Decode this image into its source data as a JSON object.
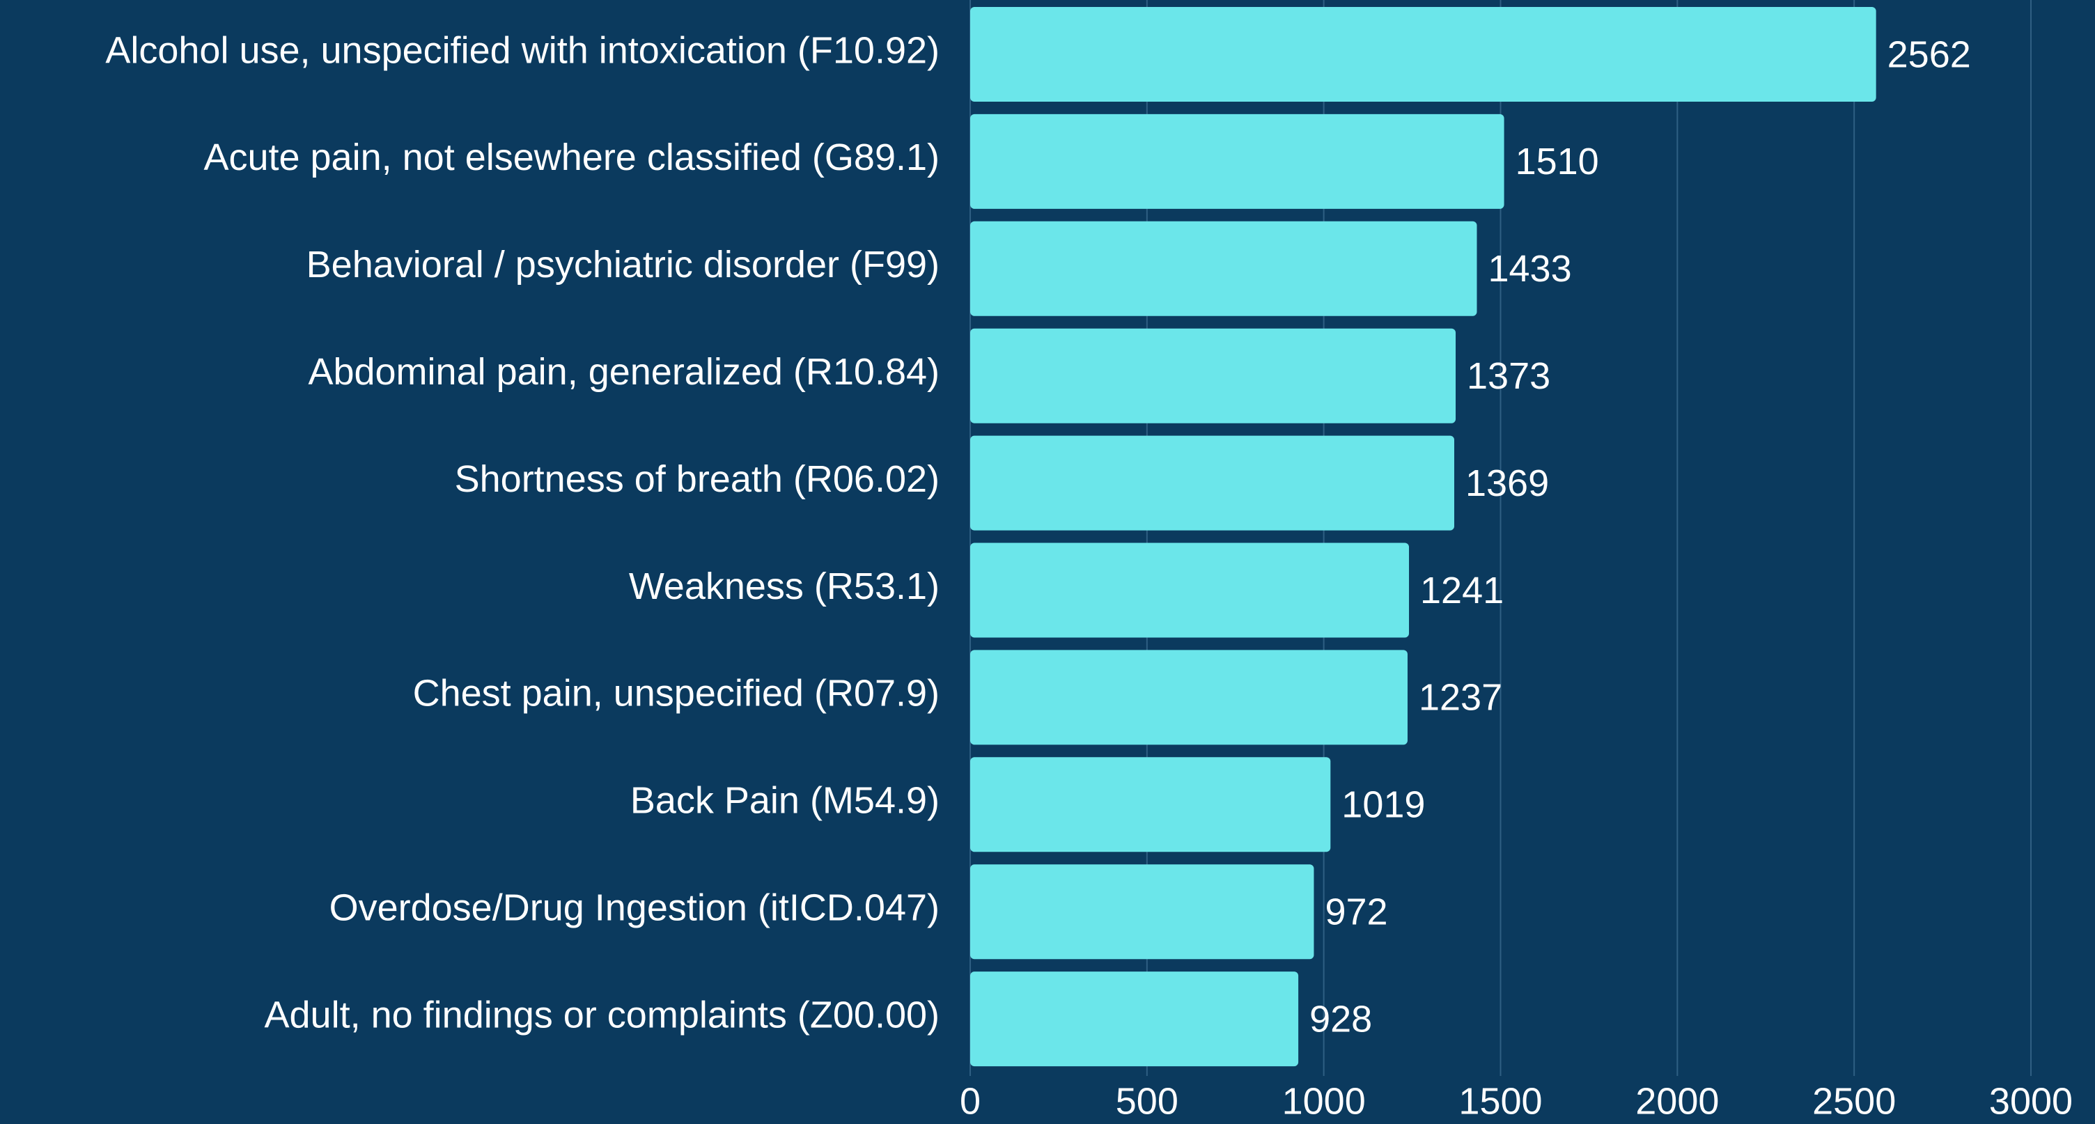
{
  "chart_data": {
    "type": "bar",
    "orientation": "horizontal",
    "categories": [
      "Alcohol use, unspecified with intoxication (F10.92)",
      "Acute pain, not elsewhere classified (G89.1)",
      "Behavioral / psychiatric disorder (F99)",
      "Abdominal pain, generalized (R10.84)",
      "Shortness of breath (R06.02)",
      "Weakness (R53.1)",
      "Chest pain, unspecified (R07.9)",
      "Back Pain (M54.9)",
      "Overdose/Drug Ingestion (itICD.047)",
      "Adult, no findings or complaints (Z00.00)"
    ],
    "values": [
      2562,
      1510,
      1433,
      1373,
      1369,
      1241,
      1237,
      1019,
      972,
      928
    ],
    "color": "#6be6ea",
    "xlim": [
      0,
      3000
    ],
    "xticks": [
      0,
      500,
      1000,
      1500,
      2000,
      2500,
      3000
    ],
    "grid": true
  }
}
